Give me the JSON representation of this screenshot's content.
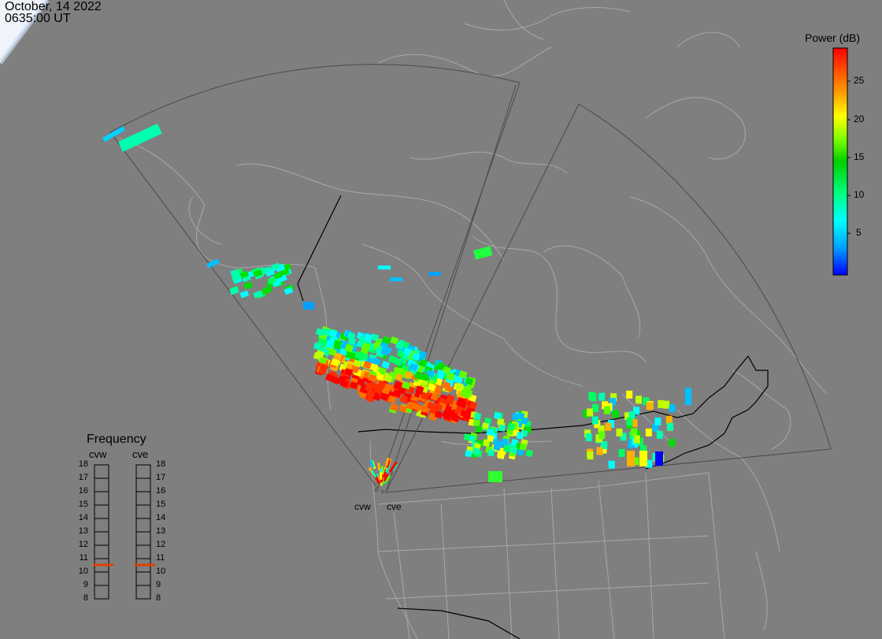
{
  "header": {
    "date": "October, 14 2022",
    "time": "0635:00 UT"
  },
  "colorbar": {
    "title": "Power (dB)",
    "ticks": [
      "25",
      "20",
      "15",
      "10",
      "5"
    ],
    "stops": [
      "#0000ff",
      "#00a0ff",
      "#00ffff",
      "#00ff60",
      "#00d000",
      "#80ff00",
      "#ffff00",
      "#ffa000",
      "#ff5000",
      "#ff0000"
    ]
  },
  "frequency_panel": {
    "title": "Frequency",
    "radars": [
      {
        "name": "cvw",
        "selected": 11
      },
      {
        "name": "cve",
        "selected": 11
      }
    ],
    "scale": [
      "18",
      "17",
      "16",
      "15",
      "14",
      "13",
      "12",
      "11",
      "10",
      "9",
      "8"
    ],
    "marker_color": "#e04000"
  },
  "radar_sites": [
    {
      "name": "cvw"
    },
    {
      "name": "cve"
    }
  ],
  "colors": {
    "background": "#7f7f7f",
    "land_lines": "#a8a8a8",
    "fov_lines": "#4a4a4a",
    "borders": "#000000"
  }
}
